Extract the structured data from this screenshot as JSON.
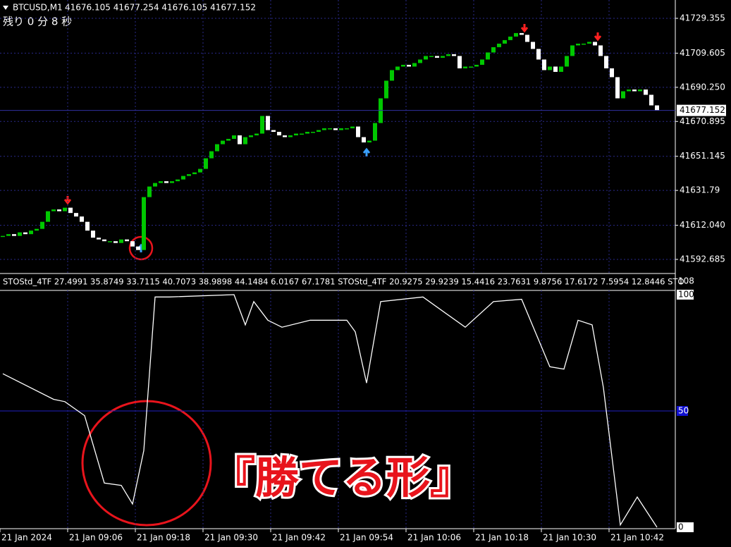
{
  "chart_data": {
    "type": "candlestick",
    "title": "BTCUSD,M1",
    "quote": "41676.105 41677.254 41676.105 41677.152",
    "countdown": "残り 0 分 8 秒",
    "close": [
      41606,
      41607,
      41606,
      41608,
      41607,
      41609,
      41610,
      41614,
      41620,
      41621,
      41620,
      41622,
      41619,
      41617,
      41614,
      41609,
      41605,
      41604,
      41603,
      41603,
      41602,
      41604,
      41603,
      41600,
      41598,
      41628,
      41634,
      41636,
      41637,
      41636,
      41637,
      41638,
      41640,
      41641,
      41642,
      41644,
      41650,
      41654,
      41658,
      41660,
      41661,
      41663,
      41658,
      41662,
      41663,
      41664,
      41674,
      41666,
      41665,
      41663,
      41662,
      41663,
      41664,
      41664,
      41665,
      41665,
      41666,
      41667,
      41667,
      41666,
      41667,
      41667,
      41668,
      41662,
      41659,
      41660,
      41670,
      41684,
      41694,
      41700,
      41702,
      41703,
      41702,
      41704,
      41706,
      41708,
      41708,
      41707,
      41708,
      41709,
      41708,
      41701,
      41702,
      41702,
      41703,
      41706,
      41710,
      41713,
      41715,
      41717,
      41719,
      41721,
      41720,
      41716,
      41712,
      41706,
      41700,
      41702,
      41699,
      41702,
      41708,
      41714,
      41715,
      41715,
      41716,
      41714,
      41708,
      41701,
      41696,
      41684,
      41688,
      41689,
      41688,
      41689,
      41686,
      41680,
      41677.152
    ],
    "up_color": "#00c800",
    "down_color": "#ffffff",
    "ylim": [
      41588.5,
      41737
    ],
    "yticks": [
      41729.355,
      41709.605,
      {
        "value": 41690.25,
        "label": "41690.250"
      },
      41670.895,
      41651.145,
      41631.79,
      {
        "value": 41612.04,
        "label": "41612.040"
      },
      41592.685
    ],
    "last_price": 41677.152,
    "xticks": [
      {
        "value": 0,
        "label": "21 Jan 2024"
      },
      {
        "value": 12,
        "label": "21 Jan 09:06"
      },
      {
        "value": 24,
        "label": "21 Jan 09:18"
      },
      {
        "value": 36,
        "label": "21 Jan 09:30"
      },
      {
        "value": 48,
        "label": "21 Jan 09:42"
      },
      {
        "value": 60,
        "label": "21 Jan 09:54"
      },
      {
        "value": 72,
        "label": "21 Jan 10:06"
      },
      {
        "value": 84,
        "label": "21 Jan 10:18"
      },
      {
        "value": 96,
        "label": "21 Jan 10:30"
      },
      {
        "value": 108,
        "label": "21 Jan 10:42"
      }
    ],
    "grid": true,
    "indicator": {
      "type": "line",
      "header": "STOStd_4TF 27.4991 35.8749 33.7115 40.7073 38.9898 44.1484 6.0167 67.1781   STOStd_4TF 20.9275 29.9239 15.4416 23.7631 9.8756 17.6172 7.5954 12.8446   STO",
      "scale_max_label": "108",
      "ylim": [
        0,
        100
      ],
      "yticks": [
        0,
        50,
        100
      ],
      "color": "#ffffff",
      "x": [
        0,
        9,
        11,
        14.5,
        18,
        21,
        23,
        25,
        27,
        29.5,
        41,
        43,
        44.5,
        47,
        49.5,
        54.5,
        61,
        62.5,
        64.5,
        67,
        74.5,
        82,
        87,
        92,
        97,
        99.5,
        102,
        104.5,
        106.5,
        109.5,
        112.5,
        116
      ],
      "values": [
        66,
        55,
        54,
        48,
        19,
        18,
        10,
        33,
        99,
        99,
        100,
        87,
        97,
        89,
        86,
        89,
        89,
        84,
        62,
        97,
        99,
        86,
        97,
        98,
        69,
        68,
        89,
        87,
        60,
        1,
        13,
        0
      ]
    },
    "annotation": "『勝てる形』"
  }
}
